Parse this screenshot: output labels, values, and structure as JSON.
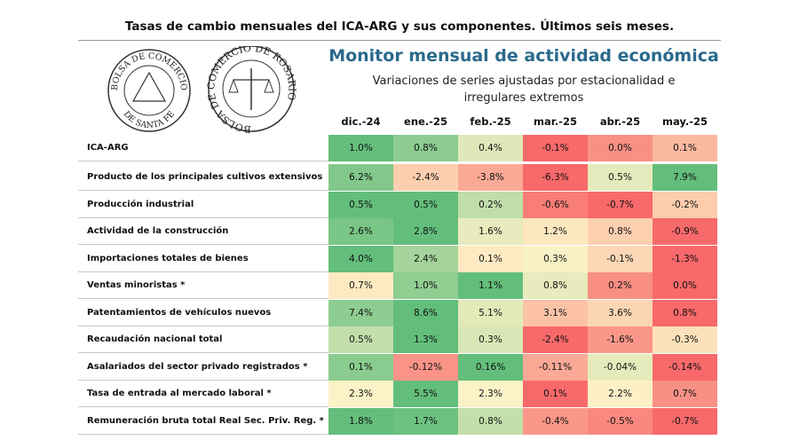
{
  "header": {
    "title": "Tasas de cambio mensuales del ICA-ARG y sus componentes. Últimos seis meses."
  },
  "logos": [
    {
      "top": "BOLSA DE COMERCIO",
      "bottom": "DE SANTA FE"
    },
    {
      "ring": "BOLSA DE COMERCIO DE ROSARIO"
    }
  ],
  "heading": "Monitor mensual de actividad económica",
  "subtitle": "Variaciones de series ajustadas por estacionalidad e irregulares extremos",
  "table": {
    "columns": [
      "dic.-24",
      "ene.-25",
      "feb.-25",
      "mar.-25",
      "abr.-25",
      "may.-25"
    ],
    "rows": [
      {
        "label": "ICA-ARG",
        "values": [
          "1.0%",
          "0.8%",
          "0.4%",
          "-0.1%",
          "0.0%",
          "0.1%"
        ]
      },
      {
        "label": "Producto de los principales cultivos extensivos",
        "values": [
          "6.2%",
          "-2.4%",
          "-3.8%",
          "-6.3%",
          "0.5%",
          "7.9%"
        ]
      },
      {
        "label": "Producción industrial",
        "values": [
          "0.5%",
          "0.5%",
          "0.2%",
          "-0.6%",
          "-0.7%",
          "-0.2%"
        ]
      },
      {
        "label": "Actividad de la construcción",
        "values": [
          "2.6%",
          "2.8%",
          "1.6%",
          "1.2%",
          "0.8%",
          "-0.9%"
        ]
      },
      {
        "label": "Importaciones totales de bienes",
        "values": [
          "4.0%",
          "2.4%",
          "0.1%",
          "0.3%",
          "-0.1%",
          "-1.3%"
        ]
      },
      {
        "label": "Ventas minoristas *",
        "values": [
          "0.7%",
          "1.0%",
          "1.1%",
          "0.8%",
          "0.2%",
          "0.0%"
        ]
      },
      {
        "label": "Patentamientos de vehículos nuevos",
        "values": [
          "7.4%",
          "8.6%",
          "5.1%",
          "3.1%",
          "3.6%",
          "0.8%"
        ]
      },
      {
        "label": "Recaudación nacional total",
        "values": [
          "0.5%",
          "1.3%",
          "0.3%",
          "-2.4%",
          "-1.6%",
          "-0.3%"
        ]
      },
      {
        "label": "Asalariados del sector privado registrados *",
        "values": [
          "0.1%",
          "-0.12%",
          "0.16%",
          "-0.11%",
          "-0.04%",
          "-0.14%"
        ]
      },
      {
        "label": "Tasa de entrada al mercado laboral *",
        "values": [
          "2.3%",
          "5.5%",
          "2.3%",
          "0.1%",
          "2.2%",
          "0.7%"
        ]
      },
      {
        "label": "Remuneración bruta total Real Sec. Priv. Reg. *",
        "values": [
          "1.8%",
          "1.7%",
          "0.8%",
          "-0.4%",
          "-0.5%",
          "-0.7%"
        ]
      }
    ]
  }
}
